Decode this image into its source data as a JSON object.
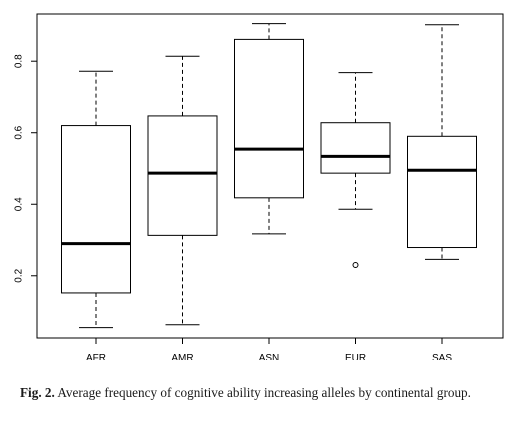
{
  "chart_data": {
    "type": "box",
    "categories": [
      "AFR",
      "AMR",
      "ASN",
      "EUR",
      "SAS"
    ],
    "boxes": [
      {
        "category": "AFR",
        "whisker_low": 0.055,
        "q1": 0.152,
        "median": 0.29,
        "q3": 0.62,
        "whisker_high": 0.772,
        "outliers": []
      },
      {
        "category": "AMR",
        "whisker_low": 0.063,
        "q1": 0.313,
        "median": 0.487,
        "q3": 0.647,
        "whisker_high": 0.814,
        "outliers": []
      },
      {
        "category": "ASN",
        "whisker_low": 0.317,
        "q1": 0.418,
        "median": 0.554,
        "q3": 0.861,
        "whisker_high": 0.905,
        "outliers": []
      },
      {
        "category": "EUR",
        "whisker_low": 0.386,
        "q1": 0.487,
        "median": 0.534,
        "q3": 0.628,
        "whisker_high": 0.768,
        "outliers": [
          0.23
        ]
      },
      {
        "category": "SAS",
        "whisker_low": 0.246,
        "q1": 0.279,
        "median": 0.495,
        "q3": 0.59,
        "whisker_high": 0.902,
        "outliers": []
      }
    ],
    "y_ticks": [
      0.2,
      0.4,
      0.6,
      0.8
    ],
    "y_tick_labels": [
      "0.2",
      "0.4",
      "0.6",
      "0.8"
    ],
    "ylim": [
      0.026,
      0.932
    ],
    "title": "",
    "xlabel": "",
    "ylabel": "",
    "grid": false
  },
  "caption": {
    "label": "Fig. 2.",
    "text": " Average frequency of cognitive ability increasing alleles by continental group."
  }
}
